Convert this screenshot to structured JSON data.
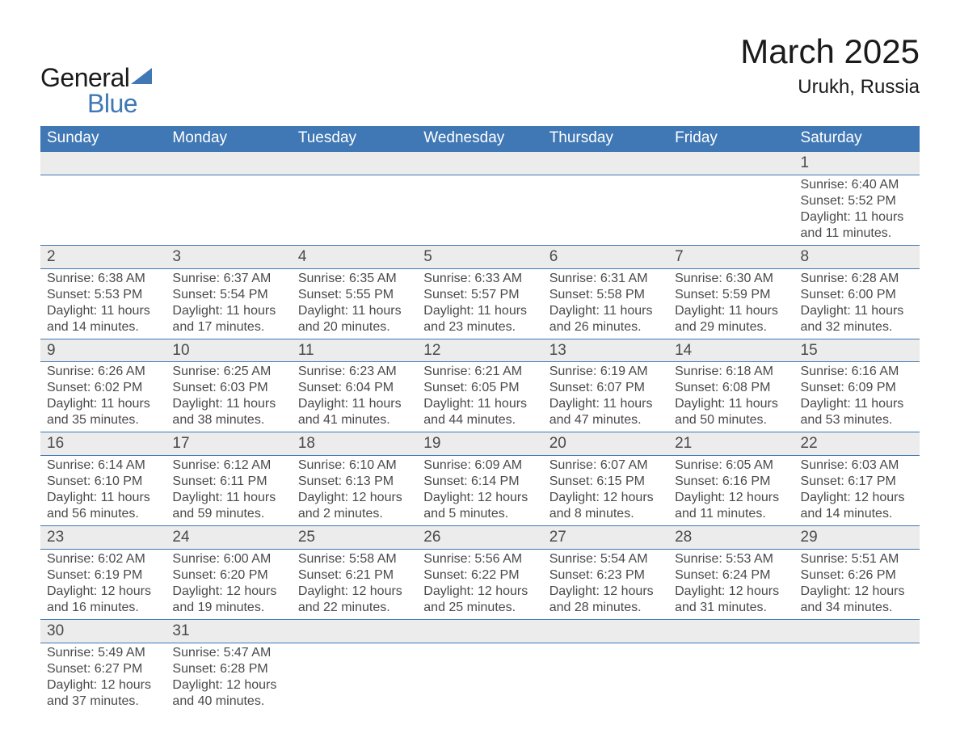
{
  "logo": {
    "word1": "General",
    "word2": "Blue",
    "tri_color": "#3f78b5"
  },
  "title": "March 2025",
  "subtitle": "Urukh, Russia",
  "colors": {
    "header_bg": "#3f78b5",
    "header_text": "#ffffff",
    "daynum_bg": "#ececec",
    "row_separator": "#3f78b5",
    "body_text": "#4a4a4a",
    "page_bg": "#ffffff"
  },
  "columns": [
    "Sunday",
    "Monday",
    "Tuesday",
    "Wednesday",
    "Thursday",
    "Friday",
    "Saturday"
  ],
  "weeks": [
    {
      "nums": [
        "",
        "",
        "",
        "",
        "",
        "",
        "1"
      ],
      "info": [
        null,
        null,
        null,
        null,
        null,
        null,
        {
          "sunrise": "Sunrise: 6:40 AM",
          "sunset": "Sunset: 5:52 PM",
          "day1": "Daylight: 11 hours",
          "day2": "and 11 minutes."
        }
      ]
    },
    {
      "nums": [
        "2",
        "3",
        "4",
        "5",
        "6",
        "7",
        "8"
      ],
      "info": [
        {
          "sunrise": "Sunrise: 6:38 AM",
          "sunset": "Sunset: 5:53 PM",
          "day1": "Daylight: 11 hours",
          "day2": "and 14 minutes."
        },
        {
          "sunrise": "Sunrise: 6:37 AM",
          "sunset": "Sunset: 5:54 PM",
          "day1": "Daylight: 11 hours",
          "day2": "and 17 minutes."
        },
        {
          "sunrise": "Sunrise: 6:35 AM",
          "sunset": "Sunset: 5:55 PM",
          "day1": "Daylight: 11 hours",
          "day2": "and 20 minutes."
        },
        {
          "sunrise": "Sunrise: 6:33 AM",
          "sunset": "Sunset: 5:57 PM",
          "day1": "Daylight: 11 hours",
          "day2": "and 23 minutes."
        },
        {
          "sunrise": "Sunrise: 6:31 AM",
          "sunset": "Sunset: 5:58 PM",
          "day1": "Daylight: 11 hours",
          "day2": "and 26 minutes."
        },
        {
          "sunrise": "Sunrise: 6:30 AM",
          "sunset": "Sunset: 5:59 PM",
          "day1": "Daylight: 11 hours",
          "day2": "and 29 minutes."
        },
        {
          "sunrise": "Sunrise: 6:28 AM",
          "sunset": "Sunset: 6:00 PM",
          "day1": "Daylight: 11 hours",
          "day2": "and 32 minutes."
        }
      ]
    },
    {
      "nums": [
        "9",
        "10",
        "11",
        "12",
        "13",
        "14",
        "15"
      ],
      "info": [
        {
          "sunrise": "Sunrise: 6:26 AM",
          "sunset": "Sunset: 6:02 PM",
          "day1": "Daylight: 11 hours",
          "day2": "and 35 minutes."
        },
        {
          "sunrise": "Sunrise: 6:25 AM",
          "sunset": "Sunset: 6:03 PM",
          "day1": "Daylight: 11 hours",
          "day2": "and 38 minutes."
        },
        {
          "sunrise": "Sunrise: 6:23 AM",
          "sunset": "Sunset: 6:04 PM",
          "day1": "Daylight: 11 hours",
          "day2": "and 41 minutes."
        },
        {
          "sunrise": "Sunrise: 6:21 AM",
          "sunset": "Sunset: 6:05 PM",
          "day1": "Daylight: 11 hours",
          "day2": "and 44 minutes."
        },
        {
          "sunrise": "Sunrise: 6:19 AM",
          "sunset": "Sunset: 6:07 PM",
          "day1": "Daylight: 11 hours",
          "day2": "and 47 minutes."
        },
        {
          "sunrise": "Sunrise: 6:18 AM",
          "sunset": "Sunset: 6:08 PM",
          "day1": "Daylight: 11 hours",
          "day2": "and 50 minutes."
        },
        {
          "sunrise": "Sunrise: 6:16 AM",
          "sunset": "Sunset: 6:09 PM",
          "day1": "Daylight: 11 hours",
          "day2": "and 53 minutes."
        }
      ]
    },
    {
      "nums": [
        "16",
        "17",
        "18",
        "19",
        "20",
        "21",
        "22"
      ],
      "info": [
        {
          "sunrise": "Sunrise: 6:14 AM",
          "sunset": "Sunset: 6:10 PM",
          "day1": "Daylight: 11 hours",
          "day2": "and 56 minutes."
        },
        {
          "sunrise": "Sunrise: 6:12 AM",
          "sunset": "Sunset: 6:11 PM",
          "day1": "Daylight: 11 hours",
          "day2": "and 59 minutes."
        },
        {
          "sunrise": "Sunrise: 6:10 AM",
          "sunset": "Sunset: 6:13 PM",
          "day1": "Daylight: 12 hours",
          "day2": "and 2 minutes."
        },
        {
          "sunrise": "Sunrise: 6:09 AM",
          "sunset": "Sunset: 6:14 PM",
          "day1": "Daylight: 12 hours",
          "day2": "and 5 minutes."
        },
        {
          "sunrise": "Sunrise: 6:07 AM",
          "sunset": "Sunset: 6:15 PM",
          "day1": "Daylight: 12 hours",
          "day2": "and 8 minutes."
        },
        {
          "sunrise": "Sunrise: 6:05 AM",
          "sunset": "Sunset: 6:16 PM",
          "day1": "Daylight: 12 hours",
          "day2": "and 11 minutes."
        },
        {
          "sunrise": "Sunrise: 6:03 AM",
          "sunset": "Sunset: 6:17 PM",
          "day1": "Daylight: 12 hours",
          "day2": "and 14 minutes."
        }
      ]
    },
    {
      "nums": [
        "23",
        "24",
        "25",
        "26",
        "27",
        "28",
        "29"
      ],
      "info": [
        {
          "sunrise": "Sunrise: 6:02 AM",
          "sunset": "Sunset: 6:19 PM",
          "day1": "Daylight: 12 hours",
          "day2": "and 16 minutes."
        },
        {
          "sunrise": "Sunrise: 6:00 AM",
          "sunset": "Sunset: 6:20 PM",
          "day1": "Daylight: 12 hours",
          "day2": "and 19 minutes."
        },
        {
          "sunrise": "Sunrise: 5:58 AM",
          "sunset": "Sunset: 6:21 PM",
          "day1": "Daylight: 12 hours",
          "day2": "and 22 minutes."
        },
        {
          "sunrise": "Sunrise: 5:56 AM",
          "sunset": "Sunset: 6:22 PM",
          "day1": "Daylight: 12 hours",
          "day2": "and 25 minutes."
        },
        {
          "sunrise": "Sunrise: 5:54 AM",
          "sunset": "Sunset: 6:23 PM",
          "day1": "Daylight: 12 hours",
          "day2": "and 28 minutes."
        },
        {
          "sunrise": "Sunrise: 5:53 AM",
          "sunset": "Sunset: 6:24 PM",
          "day1": "Daylight: 12 hours",
          "day2": "and 31 minutes."
        },
        {
          "sunrise": "Sunrise: 5:51 AM",
          "sunset": "Sunset: 6:26 PM",
          "day1": "Daylight: 12 hours",
          "day2": "and 34 minutes."
        }
      ]
    },
    {
      "nums": [
        "30",
        "31",
        "",
        "",
        "",
        "",
        ""
      ],
      "info": [
        {
          "sunrise": "Sunrise: 5:49 AM",
          "sunset": "Sunset: 6:27 PM",
          "day1": "Daylight: 12 hours",
          "day2": "and 37 minutes."
        },
        {
          "sunrise": "Sunrise: 5:47 AM",
          "sunset": "Sunset: 6:28 PM",
          "day1": "Daylight: 12 hours",
          "day2": "and 40 minutes."
        },
        null,
        null,
        null,
        null,
        null
      ]
    }
  ]
}
